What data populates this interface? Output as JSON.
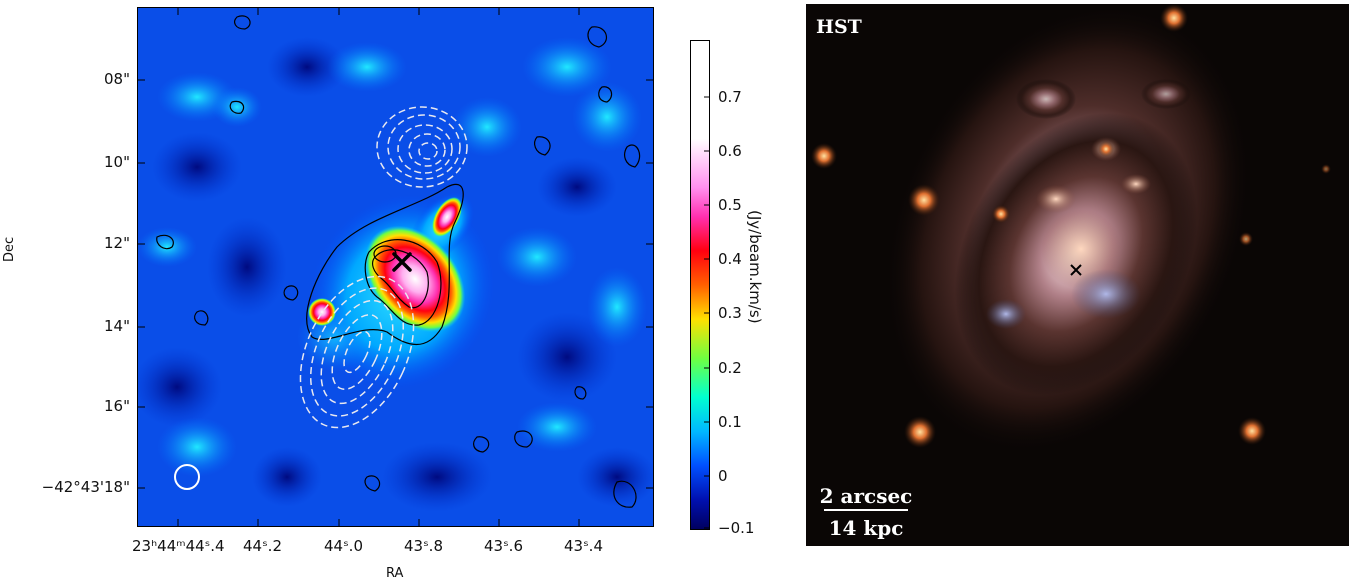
{
  "left_panel": {
    "y_axis_label": "Dec",
    "x_axis_label": "RA",
    "y_ticks": [
      {
        "label": "08\"",
        "pos": 0.14
      },
      {
        "label": "10\"",
        "pos": 0.3
      },
      {
        "label": "12\"",
        "pos": 0.455
      },
      {
        "label": "14\"",
        "pos": 0.615
      },
      {
        "label": "16\"",
        "pos": 0.77
      },
      {
        "label": "−42°43'18\"",
        "pos": 0.925
      }
    ],
    "x_ticks": [
      {
        "label": "23ʰ44ᵐ44ˢ.4",
        "pos": 0.08
      },
      {
        "label": "44ˢ.2",
        "pos": 0.235
      },
      {
        "label": "44ˢ.0",
        "pos": 0.39
      },
      {
        "label": "43ˢ.8",
        "pos": 0.545
      },
      {
        "label": "43ˢ.6",
        "pos": 0.7
      },
      {
        "label": "43ˢ.4",
        "pos": 0.855
      }
    ],
    "colorbar": {
      "label": "(Jy/beam.km/s)",
      "ticks": [
        "0.7",
        "0.6",
        "0.5",
        "0.4",
        "0.3",
        "0.2",
        "0.1",
        "0",
        "−0.1"
      ],
      "min": -0.1,
      "max": 0.8,
      "colors": [
        "#000060",
        "#0010b0",
        "#0050ff",
        "#00b8ff",
        "#00ffd0",
        "#70ff40",
        "#ffe000",
        "#ff6000",
        "#ff0010",
        "#ff30b0",
        "#ff90f0",
        "#ffffff"
      ]
    },
    "marker": "cross",
    "beam": "circle"
  },
  "right_panel": {
    "title": "HST",
    "scale_top": "2 arcsec",
    "scale_bottom": "14 kpc",
    "marker": "cross",
    "background": "#0a0605"
  }
}
